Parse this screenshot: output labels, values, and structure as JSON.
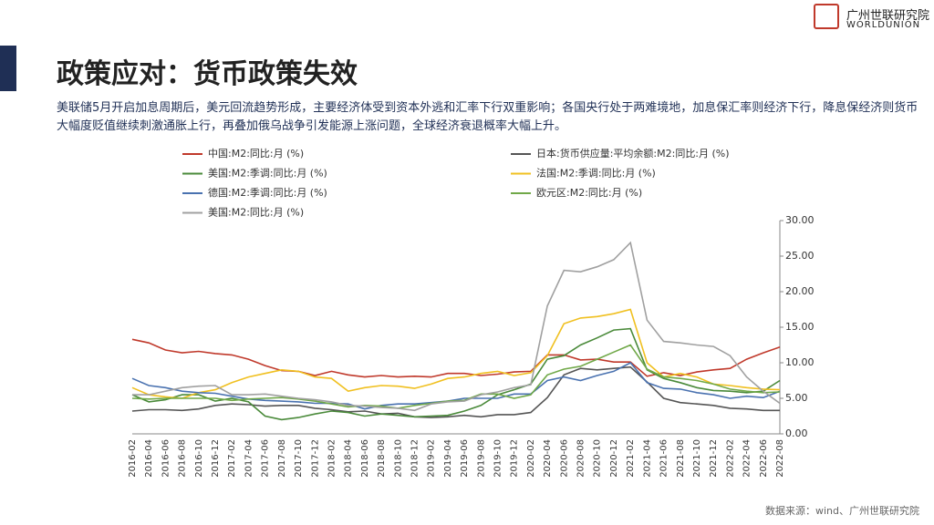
{
  "slide": {
    "title": "政策应对：货币政策失效",
    "body": "美联储5月开启加息周期后，美元回流趋势形成，主要经济体受到资本外逃和汇率下行双重影响；各国央行处于两难境地，加息保汇率则经济下行，降息保经济则货币大幅度贬值继续刺激通胀上行，再叠加俄乌战争引发能源上涨问题，全球经济衰退概率大幅上升。",
    "source": "数据来源：wind、广州世联研究院",
    "logo_cn": "广州世联研究院",
    "logo_en": "WORLDUNION"
  },
  "chart_data": {
    "type": "line",
    "categories": [
      "2016-02",
      "2016-04",
      "2016-06",
      "2016-08",
      "2016-10",
      "2016-12",
      "2017-02",
      "2017-04",
      "2017-06",
      "2017-08",
      "2017-10",
      "2017-12",
      "2018-02",
      "2018-04",
      "2018-06",
      "2018-08",
      "2018-10",
      "2018-12",
      "2019-02",
      "2019-04",
      "2019-06",
      "2019-08",
      "2019-10",
      "2019-12",
      "2020-02",
      "2020-04",
      "2020-06",
      "2020-08",
      "2020-10",
      "2020-12",
      "2021-02",
      "2021-04",
      "2021-06",
      "2021-08",
      "2021-10",
      "2021-12",
      "2022-02",
      "2022-04",
      "2022-06",
      "2022-08"
    ],
    "series": [
      {
        "name": "中国:M2:同比:月 (%)",
        "color": "#c0392b",
        "values": [
          13.3,
          12.8,
          11.8,
          11.4,
          11.6,
          11.3,
          11.1,
          10.5,
          9.6,
          8.9,
          8.8,
          8.2,
          8.8,
          8.3,
          8.0,
          8.2,
          8.0,
          8.1,
          8.0,
          8.5,
          8.5,
          8.2,
          8.4,
          8.7,
          8.8,
          11.1,
          11.1,
          10.4,
          10.5,
          10.1,
          10.1,
          8.1,
          8.6,
          8.2,
          8.7,
          9.0,
          9.2,
          10.5,
          11.4,
          12.2
        ]
      },
      {
        "name": "日本:货币供应量:平均余额:M2:同比:月 (%)",
        "color": "#555555",
        "values": [
          3.2,
          3.4,
          3.4,
          3.3,
          3.5,
          4.0,
          4.2,
          4.1,
          3.9,
          4.0,
          4.0,
          3.6,
          3.4,
          3.1,
          3.2,
          2.8,
          2.9,
          2.4,
          2.3,
          2.4,
          2.6,
          2.4,
          2.7,
          2.7,
          3.0,
          5.1,
          8.3,
          9.2,
          9.0,
          9.2,
          9.4,
          7.3,
          5.0,
          4.4,
          4.2,
          4.0,
          3.6,
          3.5,
          3.3,
          3.3
        ]
      },
      {
        "name": "美国:M2:季调:同比:月 (%)",
        "color": "#4a8a3a",
        "values": [
          5.5,
          4.5,
          4.8,
          5.5,
          5.5,
          4.6,
          5.0,
          4.5,
          2.5,
          2.0,
          2.3,
          2.8,
          3.2,
          3.0,
          2.5,
          2.8,
          2.6,
          2.4,
          2.5,
          2.6,
          3.2,
          4.0,
          5.5,
          6.2,
          7.0,
          10.5,
          11.0,
          12.5,
          13.5,
          14.6,
          14.8,
          9.0,
          7.8,
          7.2,
          6.5,
          6.1,
          6.0,
          5.8,
          6.0,
          7.5
        ]
      },
      {
        "name": "法国:M2:季调:同比:月 (%)",
        "color": "#f0c020",
        "values": [
          6.5,
          5.5,
          5.2,
          5.0,
          5.8,
          6.2,
          7.2,
          8.0,
          8.5,
          9.0,
          8.8,
          8.0,
          7.8,
          6.0,
          6.5,
          6.8,
          6.7,
          6.4,
          7.0,
          7.8,
          8.0,
          8.5,
          8.8,
          8.2,
          8.6,
          11.0,
          15.5,
          16.3,
          16.5,
          16.9,
          17.5,
          10.0,
          8.0,
          8.5,
          8.0,
          7.0,
          6.8,
          6.5,
          6.3,
          6.2
        ]
      },
      {
        "name": "德国:M2:季调:同比:月 (%)",
        "color": "#4a72b0",
        "values": [
          7.8,
          6.8,
          6.5,
          6.0,
          5.8,
          5.7,
          5.3,
          4.9,
          4.7,
          4.6,
          4.5,
          4.3,
          4.3,
          4.2,
          3.5,
          4.0,
          4.2,
          4.2,
          4.4,
          4.6,
          5.0,
          5.0,
          5.0,
          5.6,
          5.6,
          7.5,
          8.0,
          7.5,
          8.2,
          8.8,
          10.0,
          7.2,
          6.4,
          6.3,
          5.8,
          5.5,
          5.0,
          5.3,
          5.1,
          6.0
        ]
      },
      {
        "name": "欧元区:M2:同比:月 (%)",
        "color": "#70a848",
        "values": [
          5.0,
          4.9,
          5.0,
          5.0,
          5.0,
          5.0,
          4.7,
          4.9,
          5.0,
          5.1,
          4.9,
          4.6,
          4.2,
          3.8,
          4.0,
          3.9,
          3.6,
          4.0,
          4.3,
          4.6,
          4.7,
          5.6,
          5.6,
          5.0,
          5.5,
          8.3,
          9.1,
          9.5,
          10.5,
          11.5,
          12.5,
          9.1,
          8.0,
          7.8,
          7.5,
          7.0,
          6.3,
          6.0,
          5.8,
          5.9
        ]
      },
      {
        "name": "美国:M2:同比:月 (%)",
        "color": "#a0a0a0",
        "values": [
          5.5,
          5.5,
          6.0,
          6.5,
          6.7,
          6.8,
          5.5,
          5.5,
          5.6,
          5.3,
          5.0,
          4.8,
          4.5,
          4.0,
          3.9,
          3.7,
          3.6,
          3.3,
          4.2,
          4.5,
          4.6,
          5.5,
          5.9,
          6.5,
          6.9,
          18.0,
          23.0,
          22.8,
          23.5,
          24.5,
          26.9,
          16.0,
          13.0,
          12.8,
          12.5,
          12.3,
          11.0,
          8.0,
          6.0,
          4.3
        ]
      }
    ],
    "ylim": [
      0,
      30
    ],
    "yticks": [
      {
        "value": 0,
        "label": "0.00"
      },
      {
        "value": 5,
        "label": "5.00"
      },
      {
        "value": 10,
        "label": "10.00"
      },
      {
        "value": 15,
        "label": "15.00"
      },
      {
        "value": 20,
        "label": "20.00"
      },
      {
        "value": 25,
        "label": "25.00"
      },
      {
        "value": 30,
        "label": "30.00"
      }
    ],
    "grid": false
  }
}
